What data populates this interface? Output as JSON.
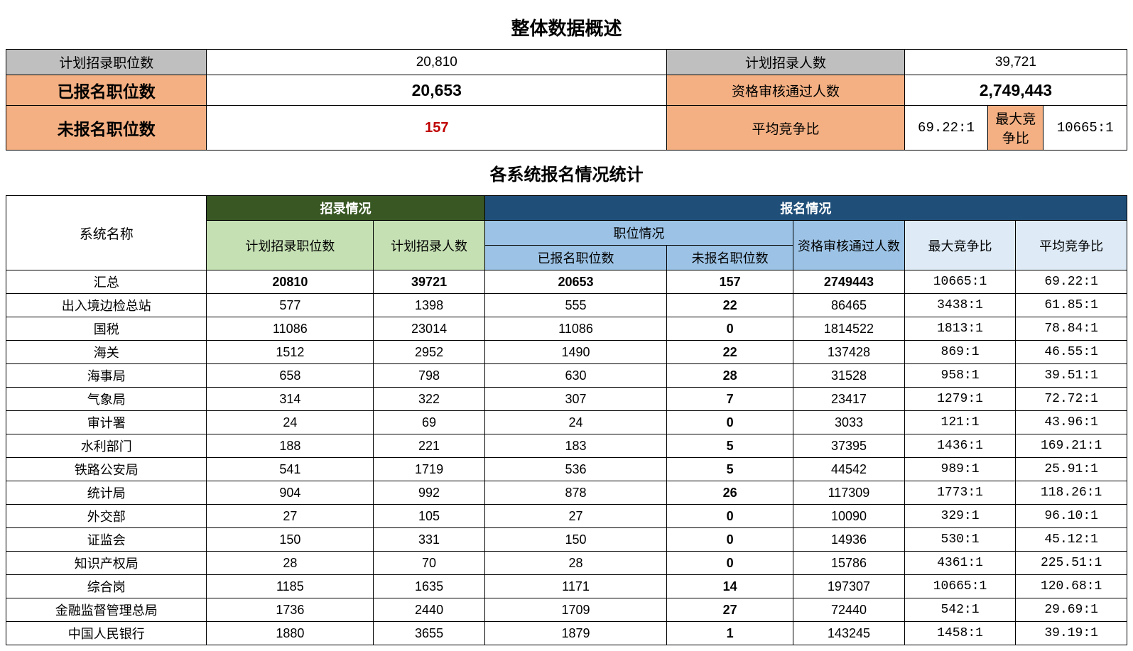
{
  "colors": {
    "border": "#000000",
    "gray_header": "#bfbfbf",
    "orange_header": "#f4b083",
    "dark_green": "#385723",
    "light_green": "#c5e0b3",
    "dark_blue": "#1f4e79",
    "mid_blue": "#9cc3e6",
    "light_blue": "#deebf6",
    "red_text": "#c00000",
    "white": "#ffffff"
  },
  "overview": {
    "title": "整体数据概述",
    "labels": {
      "plan_positions": "计划招录职位数",
      "plan_people": "计划招录人数",
      "applied_positions": "已报名职位数",
      "pass_people": "资格审核通过人数",
      "unapplied_positions": "未报名职位数",
      "avg_ratio": "平均竞争比",
      "max_ratio": "最大竞争比"
    },
    "values": {
      "plan_positions": "20,810",
      "plan_people": "39,721",
      "applied_positions": "20,653",
      "pass_people": "2,749,443",
      "unapplied_positions": "157",
      "avg_ratio": "69.22:1",
      "max_ratio": "10665:1"
    }
  },
  "detail": {
    "title": "各系统报名情况统计",
    "headers": {
      "system_name": "系统名称",
      "recruit_group": "招录情况",
      "apply_group": "报名情况",
      "plan_positions": "计划招录职位数",
      "plan_people": "计划招录人数",
      "position_group": "职位情况",
      "applied_positions": "已报名职位数",
      "unapplied_positions": "未报名职位数",
      "pass_people": "资格审核通过人数",
      "max_ratio": "最大竞争比",
      "avg_ratio": "平均竞争比"
    },
    "rows": [
      {
        "name": "汇总",
        "pp": "20810",
        "ppl": "39721",
        "ap": "20653",
        "up": "157",
        "pass": "2749443",
        "max": "10665:1",
        "avg": "69.22:1",
        "bold": true
      },
      {
        "name": "出入境边检总站",
        "pp": "577",
        "ppl": "1398",
        "ap": "555",
        "up": "22",
        "pass": "86465",
        "max": "3438:1",
        "avg": "61.85:1"
      },
      {
        "name": "国税",
        "pp": "11086",
        "ppl": "23014",
        "ap": "11086",
        "up": "0",
        "pass": "1814522",
        "max": "1813:1",
        "avg": "78.84:1"
      },
      {
        "name": "海关",
        "pp": "1512",
        "ppl": "2952",
        "ap": "1490",
        "up": "22",
        "pass": "137428",
        "max": "869:1",
        "avg": "46.55:1"
      },
      {
        "name": "海事局",
        "pp": "658",
        "ppl": "798",
        "ap": "630",
        "up": "28",
        "pass": "31528",
        "max": "958:1",
        "avg": "39.51:1"
      },
      {
        "name": "气象局",
        "pp": "314",
        "ppl": "322",
        "ap": "307",
        "up": "7",
        "pass": "23417",
        "max": "1279:1",
        "avg": "72.72:1"
      },
      {
        "name": "审计署",
        "pp": "24",
        "ppl": "69",
        "ap": "24",
        "up": "0",
        "pass": "3033",
        "max": "121:1",
        "avg": "43.96:1"
      },
      {
        "name": "水利部门",
        "pp": "188",
        "ppl": "221",
        "ap": "183",
        "up": "5",
        "pass": "37395",
        "max": "1436:1",
        "avg": "169.21:1"
      },
      {
        "name": "铁路公安局",
        "pp": "541",
        "ppl": "1719",
        "ap": "536",
        "up": "5",
        "pass": "44542",
        "max": "989:1",
        "avg": "25.91:1"
      },
      {
        "name": "统计局",
        "pp": "904",
        "ppl": "992",
        "ap": "878",
        "up": "26",
        "pass": "117309",
        "max": "1773:1",
        "avg": "118.26:1"
      },
      {
        "name": "外交部",
        "pp": "27",
        "ppl": "105",
        "ap": "27",
        "up": "0",
        "pass": "10090",
        "max": "329:1",
        "avg": "96.10:1"
      },
      {
        "name": "证监会",
        "pp": "150",
        "ppl": "331",
        "ap": "150",
        "up": "0",
        "pass": "14936",
        "max": "530:1",
        "avg": "45.12:1"
      },
      {
        "name": "知识产权局",
        "pp": "28",
        "ppl": "70",
        "ap": "28",
        "up": "0",
        "pass": "15786",
        "max": "4361:1",
        "avg": "225.51:1"
      },
      {
        "name": "综合岗",
        "pp": "1185",
        "ppl": "1635",
        "ap": "1171",
        "up": "14",
        "pass": "197307",
        "max": "10665:1",
        "avg": "120.68:1"
      },
      {
        "name": "金融监督管理总局",
        "pp": "1736",
        "ppl": "2440",
        "ap": "1709",
        "up": "27",
        "pass": "72440",
        "max": "542:1",
        "avg": "29.69:1"
      },
      {
        "name": "中国人民银行",
        "pp": "1880",
        "ppl": "3655",
        "ap": "1879",
        "up": "1",
        "pass": "143245",
        "max": "1458:1",
        "avg": "39.19:1"
      }
    ]
  }
}
